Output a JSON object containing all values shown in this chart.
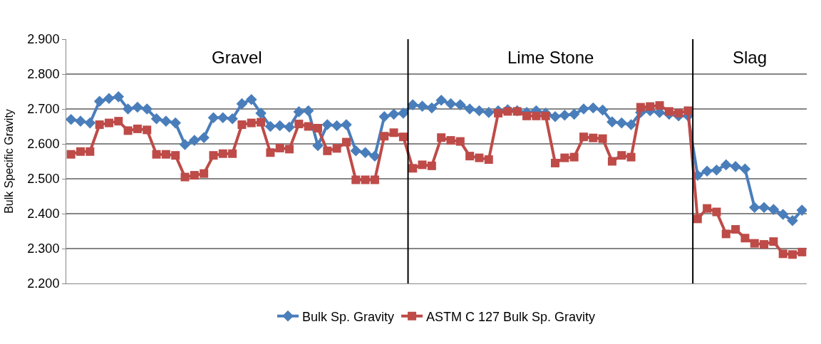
{
  "chart_data": {
    "type": "line",
    "ylabel": "Bulk Specific Gravity",
    "categories": [
      null,
      null,
      null,
      null,
      null,
      null,
      null,
      null,
      null,
      null,
      null,
      null,
      null,
      null,
      null,
      null,
      null,
      null,
      null,
      null,
      null,
      null,
      null,
      null,
      null,
      null,
      null,
      null,
      null,
      null,
      null,
      null,
      null,
      null,
      null,
      null,
      null,
      null,
      null,
      null,
      null,
      null,
      null,
      null,
      null,
      null,
      null,
      null,
      null,
      null,
      null,
      null,
      null,
      null,
      null,
      null,
      null,
      null,
      null,
      null,
      null,
      null,
      null,
      null,
      null,
      null,
      null,
      null,
      null,
      null,
      null,
      null,
      null,
      null,
      null,
      null,
      null,
      null
    ],
    "ylim": [
      2.2,
      2.9
    ],
    "yticks": [
      {
        "value": 2.2,
        "label": "2.200"
      },
      {
        "value": 2.3,
        "label": "2.300"
      },
      {
        "value": 2.4,
        "label": "2.400"
      },
      {
        "value": 2.5,
        "label": "2.500"
      },
      {
        "value": 2.6,
        "label": "2.600"
      },
      {
        "value": 2.7,
        "label": "2.700"
      },
      {
        "value": 2.8,
        "label": "2.800"
      },
      {
        "value": 2.9,
        "label": "2.900"
      }
    ],
    "grid": "y",
    "legend": "bottom",
    "line_style": "solid",
    "series": [
      {
        "name": "Bulk Sp. Gravity",
        "color": "#4a7ebb",
        "marker": "diamond",
        "values": [
          2.67,
          2.665,
          2.66,
          2.722,
          2.73,
          2.735,
          2.7,
          2.705,
          2.7,
          2.672,
          2.665,
          2.66,
          2.598,
          2.61,
          2.618,
          2.675,
          2.675,
          2.672,
          2.715,
          2.727,
          2.688,
          2.65,
          2.652,
          2.648,
          2.692,
          2.695,
          2.595,
          2.655,
          2.652,
          2.655,
          2.58,
          2.575,
          2.565,
          2.678,
          2.685,
          2.688,
          2.712,
          2.708,
          2.703,
          2.725,
          2.715,
          2.712,
          2.7,
          2.695,
          2.69,
          2.695,
          2.698,
          2.695,
          2.69,
          2.695,
          2.688,
          2.678,
          2.682,
          2.685,
          2.7,
          2.703,
          2.697,
          2.663,
          2.66,
          2.655,
          2.69,
          2.695,
          2.69,
          2.685,
          2.68,
          2.68,
          2.51,
          2.522,
          2.525,
          2.54,
          2.535,
          2.528,
          2.418,
          2.418,
          2.412,
          2.398,
          2.38,
          2.41
        ]
      },
      {
        "name": "ASTM C 127 Bulk Sp. Gravity",
        "color": "#be4b48",
        "marker": "square",
        "values": [
          2.57,
          2.578,
          2.578,
          2.655,
          2.66,
          2.665,
          2.638,
          2.643,
          2.64,
          2.57,
          2.57,
          2.567,
          2.505,
          2.51,
          2.515,
          2.567,
          2.572,
          2.572,
          2.655,
          2.66,
          2.662,
          2.575,
          2.588,
          2.585,
          2.657,
          2.65,
          2.645,
          2.58,
          2.587,
          2.605,
          2.497,
          2.497,
          2.497,
          2.622,
          2.632,
          2.62,
          2.53,
          2.54,
          2.537,
          2.618,
          2.61,
          2.607,
          2.565,
          2.56,
          2.555,
          2.688,
          2.693,
          2.693,
          2.68,
          2.68,
          2.68,
          2.545,
          2.56,
          2.562,
          2.62,
          2.617,
          2.615,
          2.55,
          2.567,
          2.562,
          2.705,
          2.707,
          2.71,
          2.693,
          2.688,
          2.695,
          2.385,
          2.415,
          2.405,
          2.342,
          2.355,
          2.33,
          2.315,
          2.312,
          2.32,
          2.285,
          2.283,
          2.29
        ]
      }
    ],
    "annotations": [
      "Gravel",
      "Lime Stone",
      "Slag"
    ]
  }
}
